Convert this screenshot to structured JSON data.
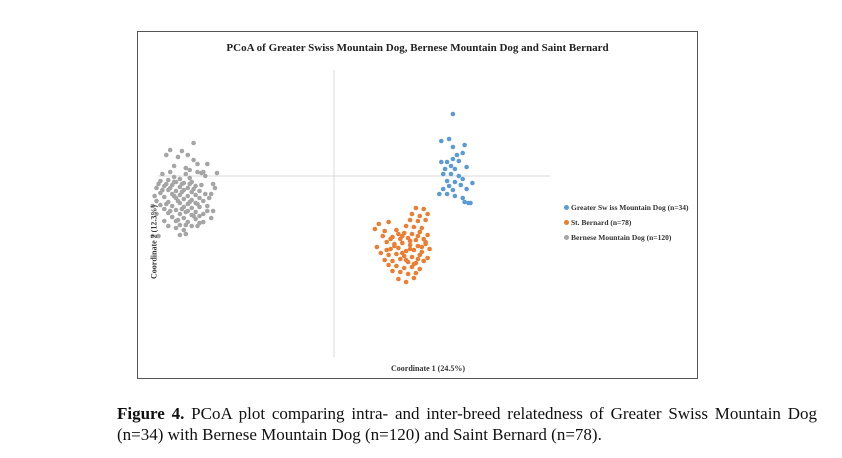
{
  "chart_data": {
    "type": "scatter",
    "title": "PCoA of Greater Swiss Mountain Dog, Bernese Mountain Dog and Saint Bernard",
    "xlabel": "Coordinate  1 (24.5%)",
    "ylabel": "Coordinate  2 (12.3%)",
    "xlim": [
      -1,
      1
    ],
    "ylim": [
      -1,
      1
    ],
    "grid": false,
    "legend": "right",
    "series": [
      {
        "name": "Greater Sw iss Mountain Dog (n=34)",
        "color": "#5b9bd5",
        "points": [
          [
            0.61,
            0.62
          ],
          [
            0.55,
            0.35
          ],
          [
            0.59,
            0.37
          ],
          [
            0.61,
            0.29
          ],
          [
            0.67,
            0.31
          ],
          [
            0.66,
            0.23
          ],
          [
            0.55,
            0.14
          ],
          [
            0.58,
            0.14
          ],
          [
            0.61,
            0.17
          ],
          [
            0.64,
            0.15
          ],
          [
            0.57,
            0.07
          ],
          [
            0.62,
            0.07
          ],
          [
            0.68,
            0.09
          ],
          [
            0.56,
            0.02
          ],
          [
            0.6,
            0.02
          ],
          [
            0.64,
            0.0
          ],
          [
            0.58,
            -0.05
          ],
          [
            0.66,
            -0.03
          ],
          [
            0.62,
            -0.06
          ],
          [
            0.71,
            -0.07
          ],
          [
            0.59,
            -0.1
          ],
          [
            0.65,
            -0.09
          ],
          [
            0.56,
            -0.13
          ],
          [
            0.61,
            -0.14
          ],
          [
            0.68,
            -0.13
          ],
          [
            0.54,
            -0.18
          ],
          [
            0.58,
            -0.18
          ],
          [
            0.62,
            -0.2
          ],
          [
            0.66,
            -0.22
          ],
          [
            0.67,
            -0.26
          ],
          [
            0.69,
            -0.27
          ],
          [
            0.7,
            -0.27
          ],
          [
            0.6,
            0.1
          ],
          [
            0.63,
            0.21
          ]
        ]
      },
      {
        "name": "St. Bernard (n=78)",
        "color": "#ed7d31",
        "points": [
          [
            0.42,
            -0.32
          ],
          [
            0.46,
            -0.33
          ],
          [
            0.4,
            -0.38
          ],
          [
            0.44,
            -0.4
          ],
          [
            0.48,
            -0.38
          ],
          [
            0.39,
            -0.44
          ],
          [
            0.43,
            -0.45
          ],
          [
            0.47,
            -0.44
          ],
          [
            0.23,
            -0.48
          ],
          [
            0.28,
            -0.46
          ],
          [
            0.37,
            -0.5
          ],
          [
            0.41,
            -0.51
          ],
          [
            0.45,
            -0.52
          ],
          [
            0.21,
            -0.53
          ],
          [
            0.26,
            -0.55
          ],
          [
            0.32,
            -0.54
          ],
          [
            0.36,
            -0.57
          ],
          [
            0.4,
            -0.58
          ],
          [
            0.44,
            -0.56
          ],
          [
            0.48,
            -0.59
          ],
          [
            0.25,
            -0.6
          ],
          [
            0.3,
            -0.61
          ],
          [
            0.34,
            -0.63
          ],
          [
            0.38,
            -0.62
          ],
          [
            0.42,
            -0.64
          ],
          [
            0.46,
            -0.63
          ],
          [
            0.27,
            -0.66
          ],
          [
            0.31,
            -0.68
          ],
          [
            0.35,
            -0.67
          ],
          [
            0.39,
            -0.69
          ],
          [
            0.43,
            -0.7
          ],
          [
            0.47,
            -0.68
          ],
          [
            0.22,
            -0.71
          ],
          [
            0.29,
            -0.73
          ],
          [
            0.33,
            -0.72
          ],
          [
            0.37,
            -0.75
          ],
          [
            0.41,
            -0.74
          ],
          [
            0.45,
            -0.76
          ],
          [
            0.49,
            -0.73
          ],
          [
            0.24,
            -0.77
          ],
          [
            0.28,
            -0.79
          ],
          [
            0.32,
            -0.78
          ],
          [
            0.36,
            -0.8
          ],
          [
            0.4,
            -0.81
          ],
          [
            0.44,
            -0.79
          ],
          [
            0.48,
            -0.82
          ],
          [
            0.26,
            -0.84
          ],
          [
            0.3,
            -0.85
          ],
          [
            0.34,
            -0.83
          ],
          [
            0.38,
            -0.86
          ],
          [
            0.42,
            -0.87
          ],
          [
            0.46,
            -0.85
          ],
          [
            0.28,
            -0.89
          ],
          [
            0.32,
            -0.9
          ],
          [
            0.36,
            -0.92
          ],
          [
            0.4,
            -0.91
          ],
          [
            0.44,
            -0.93
          ],
          [
            0.3,
            -0.95
          ],
          [
            0.34,
            -0.96
          ],
          [
            0.38,
            -0.98
          ],
          [
            0.42,
            -0.97
          ],
          [
            0.33,
            -1.03
          ],
          [
            0.37,
            -1.06
          ],
          [
            0.41,
            -1.02
          ],
          [
            0.31,
            -0.7
          ],
          [
            0.35,
            -0.6
          ],
          [
            0.39,
            -0.65
          ],
          [
            0.43,
            -0.6
          ],
          [
            0.33,
            -0.58
          ],
          [
            0.37,
            -0.84
          ],
          [
            0.27,
            -0.74
          ],
          [
            0.45,
            -0.71
          ],
          [
            0.41,
            -0.88
          ],
          [
            0.29,
            -0.63
          ],
          [
            0.47,
            -0.66
          ],
          [
            0.35,
            -0.77
          ],
          [
            0.39,
            -0.73
          ],
          [
            0.43,
            -0.83
          ]
        ]
      },
      {
        "name": "Bernese Mountain Dog (n=120)",
        "color": "#a5a5a5",
        "points": [
          [
            -0.72,
            0.33
          ],
          [
            -0.84,
            0.26
          ],
          [
            -0.78,
            0.25
          ],
          [
            -0.86,
            0.21
          ],
          [
            -0.8,
            0.19
          ],
          [
            -0.75,
            0.21
          ],
          [
            -0.7,
            0.04
          ],
          [
            -0.68,
            0.03
          ],
          [
            -0.76,
            0.02
          ],
          [
            -0.82,
            -0.01
          ],
          [
            -0.74,
            -0.02
          ],
          [
            -0.79,
            -0.03
          ],
          [
            -0.85,
            -0.04
          ],
          [
            -0.89,
            -0.05
          ],
          [
            -0.81,
            -0.06
          ],
          [
            -0.77,
            -0.07
          ],
          [
            -0.73,
            -0.06
          ],
          [
            -0.83,
            -0.09
          ],
          [
            -0.87,
            -0.1
          ],
          [
            -0.79,
            -0.11
          ],
          [
            -0.75,
            -0.12
          ],
          [
            -0.71,
            -0.1
          ],
          [
            -0.91,
            -0.12
          ],
          [
            -0.85,
            -0.14
          ],
          [
            -0.81,
            -0.15
          ],
          [
            -0.77,
            -0.14
          ],
          [
            -0.73,
            -0.16
          ],
          [
            -0.69,
            -0.15
          ],
          [
            -0.89,
            -0.17
          ],
          [
            -0.83,
            -0.18
          ],
          [
            -0.79,
            -0.19
          ],
          [
            -0.75,
            -0.2
          ],
          [
            -0.71,
            -0.19
          ],
          [
            -0.87,
            -0.21
          ],
          [
            -0.81,
            -0.22
          ],
          [
            -0.77,
            -0.23
          ],
          [
            -0.73,
            -0.24
          ],
          [
            -0.69,
            -0.22
          ],
          [
            -0.91,
            -0.25
          ],
          [
            -0.85,
            -0.26
          ],
          [
            -0.79,
            -0.27
          ],
          [
            -0.75,
            -0.28
          ],
          [
            -0.71,
            -0.27
          ],
          [
            -0.67,
            -0.25
          ],
          [
            -0.89,
            -0.29
          ],
          [
            -0.83,
            -0.3
          ],
          [
            -0.77,
            -0.31
          ],
          [
            -0.73,
            -0.32
          ],
          [
            -0.69,
            -0.31
          ],
          [
            -0.87,
            -0.33
          ],
          [
            -0.81,
            -0.34
          ],
          [
            -0.75,
            -0.35
          ],
          [
            -0.71,
            -0.36
          ],
          [
            -0.65,
            -0.35
          ],
          [
            -0.85,
            -0.37
          ],
          [
            -0.79,
            -0.38
          ],
          [
            -0.73,
            -0.39
          ],
          [
            -0.69,
            -0.4
          ],
          [
            -0.83,
            -0.41
          ],
          [
            -0.77,
            -0.42
          ],
          [
            -0.71,
            -0.43
          ],
          [
            -0.81,
            -0.45
          ],
          [
            -0.75,
            -0.46
          ],
          [
            -0.69,
            -0.47
          ],
          [
            -0.79,
            -0.49
          ],
          [
            -0.73,
            -0.5
          ],
          [
            -0.77,
            -0.54
          ],
          [
            -0.79,
            -0.59
          ],
          [
            -0.93,
            -0.6
          ],
          [
            -0.9,
            -0.6
          ],
          [
            -0.76,
            -0.58
          ],
          [
            -0.67,
            0.04
          ],
          [
            -0.66,
            0.0
          ],
          [
            -0.88,
            0.02
          ],
          [
            -0.84,
            0.04
          ],
          [
            -0.62,
            -0.08
          ],
          [
            -0.64,
            -0.22
          ],
          [
            -0.62,
            -0.35
          ],
          [
            -0.63,
            -0.42
          ],
          [
            -0.6,
            0.03
          ],
          [
            -0.65,
            0.12
          ],
          [
            -0.7,
            0.12
          ],
          [
            -0.72,
            0.16
          ],
          [
            -0.86,
            -0.08
          ],
          [
            -0.92,
            -0.2
          ],
          [
            -0.93,
            -0.3
          ],
          [
            -0.91,
            -0.38
          ],
          [
            -0.87,
            -0.45
          ],
          [
            -0.85,
            -0.5
          ],
          [
            -0.81,
            -0.52
          ],
          [
            -0.67,
            -0.46
          ],
          [
            -0.67,
            -0.38
          ],
          [
            -0.65,
            -0.3
          ],
          [
            -0.63,
            -0.18
          ],
          [
            -0.61,
            -0.12
          ],
          [
            -0.82,
            0.1
          ],
          [
            -0.76,
            0.08
          ],
          [
            -0.74,
            0.06
          ],
          [
            -0.78,
            -0.16
          ],
          [
            -0.74,
            -0.08
          ],
          [
            -0.8,
            -0.25
          ],
          [
            -0.76,
            -0.36
          ],
          [
            -0.72,
            -0.4
          ],
          [
            -0.86,
            -0.28
          ],
          [
            -0.84,
            -0.12
          ],
          [
            -0.82,
            -0.2
          ],
          [
            -0.78,
            -0.33
          ],
          [
            -0.72,
            -0.13
          ],
          [
            -0.7,
            -0.28
          ],
          [
            -0.88,
            -0.14
          ],
          [
            -0.9,
            -0.08
          ],
          [
            -0.68,
            -0.09
          ],
          [
            -0.66,
            -0.18
          ],
          [
            -0.8,
            -0.44
          ],
          [
            -0.74,
            -0.26
          ],
          [
            -0.84,
            -0.35
          ],
          [
            -0.76,
            -0.49
          ],
          [
            -0.7,
            -0.5
          ],
          [
            -0.82,
            -0.06
          ],
          [
            -0.78,
            -0.08
          ]
        ]
      }
    ]
  },
  "caption": {
    "label": "Figure 4.",
    "text": " PCoA plot comparing intra- and inter-breed relatedness of Greater Swiss Mountain Dog (n=34) with Bernese Mountain Dog (n=120) and Saint Bernard (n=78)."
  }
}
